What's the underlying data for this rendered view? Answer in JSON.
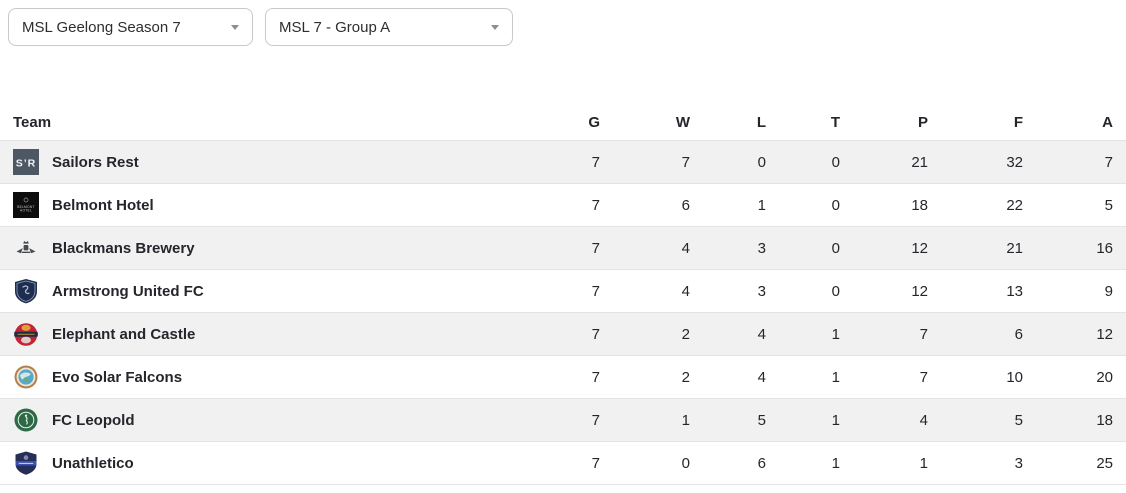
{
  "filters": {
    "season": "MSL Geelong Season 7",
    "group": "MSL 7 - Group A"
  },
  "table": {
    "columns": [
      "Team",
      "G",
      "W",
      "L",
      "T",
      "P",
      "F",
      "A"
    ],
    "rows": [
      {
        "team": "Sailors Rest",
        "logo": "sailors-rest",
        "g": 7,
        "w": 7,
        "l": 0,
        "t": 0,
        "p": 21,
        "f": 32,
        "a": 7
      },
      {
        "team": "Belmont Hotel",
        "logo": "belmont-hotel",
        "g": 7,
        "w": 6,
        "l": 1,
        "t": 0,
        "p": 18,
        "f": 22,
        "a": 5
      },
      {
        "team": "Blackmans Brewery",
        "logo": "blackmans-brewery",
        "g": 7,
        "w": 4,
        "l": 3,
        "t": 0,
        "p": 12,
        "f": 21,
        "a": 16
      },
      {
        "team": "Armstrong United FC",
        "logo": "armstrong-united-fc",
        "g": 7,
        "w": 4,
        "l": 3,
        "t": 0,
        "p": 12,
        "f": 13,
        "a": 9
      },
      {
        "team": "Elephant and Castle",
        "logo": "elephant-and-castle",
        "g": 7,
        "w": 2,
        "l": 4,
        "t": 1,
        "p": 7,
        "f": 6,
        "a": 12
      },
      {
        "team": "Evo Solar Falcons",
        "logo": "evo-solar-falcons",
        "g": 7,
        "w": 2,
        "l": 4,
        "t": 1,
        "p": 7,
        "f": 10,
        "a": 20
      },
      {
        "team": "FC Leopold",
        "logo": "fc-leopold",
        "g": 7,
        "w": 1,
        "l": 5,
        "t": 1,
        "p": 4,
        "f": 5,
        "a": 18
      },
      {
        "team": "Unathletico",
        "logo": "unathletico",
        "g": 7,
        "w": 0,
        "l": 6,
        "t": 1,
        "p": 1,
        "f": 3,
        "a": 25
      }
    ]
  },
  "colors": {
    "row_stripe": "#f1f1f2",
    "row_border": "#e4e4e6",
    "text": "#24262b",
    "dropdown_border": "#c9c9cc"
  }
}
